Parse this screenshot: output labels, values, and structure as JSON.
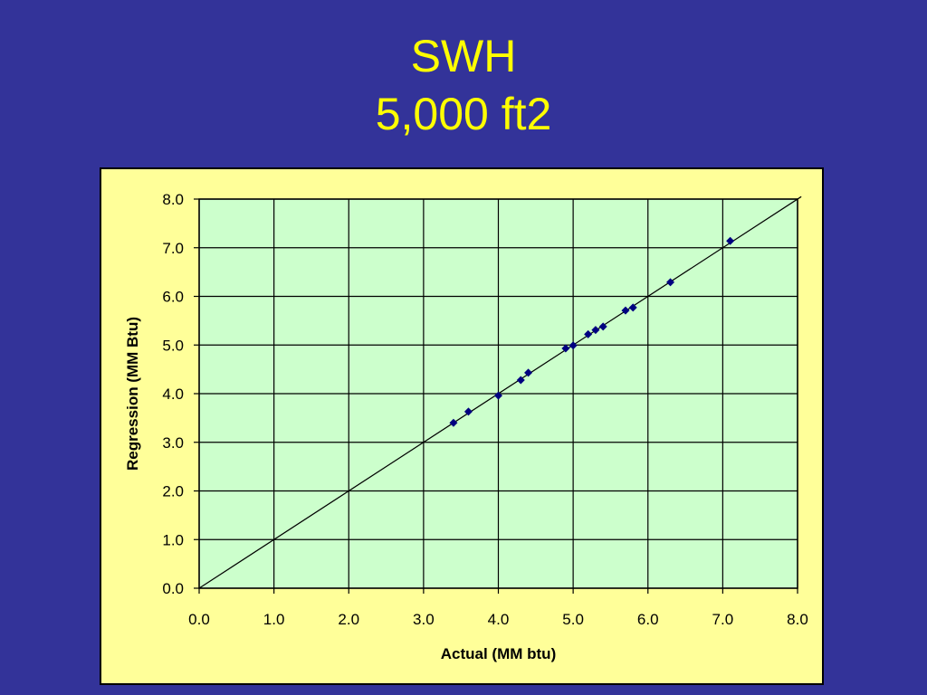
{
  "slide": {
    "title_line1": "SWH",
    "title_line2": "5,000 ft2"
  },
  "colors": {
    "background": "#333399",
    "title": "#ffff00",
    "chart_area": "#ffff99",
    "plot_area": "#ccffcc",
    "marker": "#000080",
    "gridline": "#000000"
  },
  "chart_data": {
    "type": "scatter",
    "title": "",
    "xlabel": "Actual (MM btu)",
    "ylabel": "Regression (MM Btu)",
    "xlim": [
      0,
      8
    ],
    "ylim": [
      0,
      8
    ],
    "xticks": [
      "0.0",
      "1.0",
      "2.0",
      "3.0",
      "4.0",
      "5.0",
      "6.0",
      "7.0",
      "8.0"
    ],
    "yticks": [
      "0.0",
      "1.0",
      "2.0",
      "3.0",
      "4.0",
      "5.0",
      "6.0",
      "7.0",
      "8.0"
    ],
    "grid": true,
    "legend": "none",
    "marker": "diamond",
    "reference_line": {
      "type": "y=x",
      "from": 0,
      "to": 8.05
    },
    "series": [
      {
        "points": [
          [
            3.4,
            3.4
          ],
          [
            3.6,
            3.63
          ],
          [
            4.0,
            3.96
          ],
          [
            4.3,
            4.28
          ],
          [
            4.4,
            4.43
          ],
          [
            4.9,
            4.93
          ],
          [
            5.0,
            4.99
          ],
          [
            5.2,
            5.22
          ],
          [
            5.3,
            5.31
          ],
          [
            5.4,
            5.38
          ],
          [
            5.7,
            5.71
          ],
          [
            5.8,
            5.77
          ],
          [
            6.3,
            6.29
          ],
          [
            7.1,
            7.14
          ]
        ]
      }
    ]
  }
}
